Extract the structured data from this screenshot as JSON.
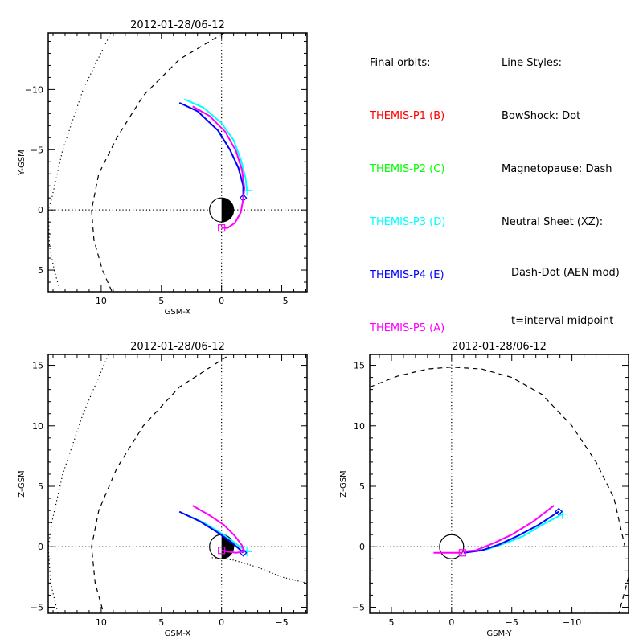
{
  "legend": {
    "orbits_title": "Final orbits:",
    "orbits": [
      {
        "label": "THEMIS-P1 (B)",
        "color": "#ff0000"
      },
      {
        "label": "THEMIS-P2 (C)",
        "color": "#00ff00"
      },
      {
        "label": "THEMIS-P3 (D)",
        "color": "#00ffff"
      },
      {
        "label": "THEMIS-P4 (E)",
        "color": "#0000ff"
      },
      {
        "label": "THEMIS-P5 (A)",
        "color": "#ff00ff"
      }
    ],
    "styles_title": "Line Styles:",
    "styles": [
      "BowShock: Dot",
      "Magnetopause: Dash",
      "Neutral Sheet (XZ):"
    ],
    "styles_indented": [
      "Dash-Dot (AEN mod)",
      "t=interval midpoint"
    ]
  },
  "chart_data": [
    {
      "type": "line",
      "title": "2012-01-28/06-12",
      "xlabel": "GSM-X",
      "ylabel": "Y-GSM",
      "xlim": [
        14.4,
        -7.1
      ],
      "ylim": [
        6.8,
        -14.7
      ],
      "xticks": [
        10,
        5,
        0,
        -5
      ],
      "yticks": [
        -10,
        -5,
        0,
        5
      ],
      "tick_labels_x": [
        "10",
        "5",
        "0",
        "-5"
      ],
      "tick_labels_y": [
        "-10",
        "-5",
        "0",
        "5"
      ],
      "earth": {
        "center": [
          0,
          0
        ],
        "radius": 1,
        "night_side": "negative-x"
      },
      "boundaries": [
        {
          "name": "bow-shock",
          "style": "dot",
          "points": [
            [
              9.2,
              -14.7
            ],
            [
              11.5,
              -10
            ],
            [
              13.2,
              -5
            ],
            [
              14.1,
              -1
            ],
            [
              14.4,
              0
            ],
            [
              14.3,
              3
            ],
            [
              13.9,
              5
            ],
            [
              13.4,
              6.8
            ]
          ]
        },
        {
          "name": "magnetopause",
          "style": "dash",
          "points": [
            [
              -0.2,
              -14.7
            ],
            [
              3.5,
              -12.5
            ],
            [
              6.5,
              -9.5
            ],
            [
              8.7,
              -6
            ],
            [
              10.2,
              -3
            ],
            [
              10.8,
              0
            ],
            [
              10.6,
              2.5
            ],
            [
              9.9,
              5
            ],
            [
              9.1,
              6.8
            ]
          ]
        }
      ],
      "series": [
        {
          "name": "THEMIS-P3 (D)",
          "color": "#00ffff",
          "points": [
            [
              3.1,
              -9.2
            ],
            [
              1.5,
              -8.5
            ],
            [
              0,
              -7.2
            ],
            [
              -1.0,
              -5.8
            ],
            [
              -1.6,
              -4.2
            ],
            [
              -2.0,
              -2.6
            ],
            [
              -2.1,
              -1.6
            ]
          ],
          "end_marker": "plus"
        },
        {
          "name": "THEMIS-P4 (E)",
          "color": "#0000ff",
          "points": [
            [
              3.5,
              -8.9
            ],
            [
              2.0,
              -8.2
            ],
            [
              0.3,
              -6.6
            ],
            [
              -0.7,
              -5.0
            ],
            [
              -1.4,
              -3.5
            ],
            [
              -1.8,
              -2.0
            ],
            [
              -1.8,
              -1.0
            ]
          ],
          "end_marker": "diamond"
        },
        {
          "name": "THEMIS-P5 (A)",
          "color": "#ff00ff",
          "points": [
            [
              2.4,
              -8.6
            ],
            [
              1.0,
              -7.8
            ],
            [
              -0.3,
              -6.5
            ],
            [
              -1.2,
              -4.9
            ],
            [
              -1.7,
              -3.3
            ],
            [
              -1.9,
              -1.8
            ],
            [
              -1.8,
              -0.9
            ],
            [
              -1.6,
              0.2
            ],
            [
              -1.1,
              1.1
            ],
            [
              -0.5,
              1.5
            ],
            [
              0,
              1.5
            ]
          ],
          "end_marker": "square"
        }
      ]
    },
    {
      "type": "line",
      "title": "2012-01-28/06-12",
      "xlabel": "GSM-X",
      "ylabel": "Z-GSM",
      "xlim": [
        14.4,
        -7.1
      ],
      "ylim": [
        -5.5,
        15.9
      ],
      "xticks": [
        10,
        5,
        0,
        -5
      ],
      "yticks": [
        -5,
        0,
        5,
        10,
        15
      ],
      "tick_labels_x": [
        "10",
        "5",
        "0",
        "-5"
      ],
      "tick_labels_y": [
        "-5",
        "0",
        "5",
        "10",
        "15"
      ],
      "earth": {
        "center": [
          0,
          0
        ],
        "radius": 1,
        "night_side": "negative-x"
      },
      "boundaries": [
        {
          "name": "bow-shock",
          "style": "dot",
          "points": [
            [
              9.4,
              15.9
            ],
            [
              11.5,
              11
            ],
            [
              13.2,
              6
            ],
            [
              14.1,
              2
            ],
            [
              14.4,
              0
            ],
            [
              14.2,
              -3
            ],
            [
              13.6,
              -5.5
            ]
          ]
        },
        {
          "name": "magnetopause",
          "style": "dash",
          "points": [
            [
              -0.4,
              15.7
            ],
            [
              3.5,
              13.2
            ],
            [
              6.5,
              10
            ],
            [
              8.7,
              6.5
            ],
            [
              10.2,
              3
            ],
            [
              10.8,
              0
            ],
            [
              10.5,
              -3
            ],
            [
              9.8,
              -5.5
            ]
          ]
        },
        {
          "name": "neutral-sheet",
          "style": "dash-dot",
          "points": [
            [
              0.8,
              -0.9
            ],
            [
              -1,
              -1.1
            ],
            [
              -3,
              -1.7
            ],
            [
              -5,
              -2.5
            ],
            [
              -7.1,
              -3
            ]
          ]
        }
      ],
      "series": [
        {
          "name": "THEMIS-P3 (D)",
          "color": "#00ffff",
          "points": [
            [
              3.1,
              2.7
            ],
            [
              1.5,
              2.0
            ],
            [
              0,
              1.1
            ],
            [
              -1.0,
              0.4
            ],
            [
              -1.8,
              -0.2
            ],
            [
              -2.1,
              -0.4
            ]
          ],
          "end_marker": "plus"
        },
        {
          "name": "THEMIS-P4 (E)",
          "color": "#0000ff",
          "points": [
            [
              3.5,
              2.9
            ],
            [
              1.8,
              2.1
            ],
            [
              0.2,
              1.1
            ],
            [
              -0.9,
              0.3
            ],
            [
              -1.6,
              -0.3
            ],
            [
              -1.8,
              -0.5
            ]
          ],
          "end_marker": "diamond"
        },
        {
          "name": "THEMIS-P5 (A)",
          "color": "#ff00ff",
          "points": [
            [
              2.4,
              3.4
            ],
            [
              1.0,
              2.6
            ],
            [
              -0.2,
              1.8
            ],
            [
              -1.1,
              0.9
            ],
            [
              -1.7,
              0.1
            ],
            [
              -1.9,
              -0.4
            ],
            [
              -1.2,
              -0.5
            ],
            [
              -0.5,
              -0.4
            ],
            [
              0,
              -0.3
            ]
          ],
          "end_marker": "square"
        }
      ]
    },
    {
      "type": "line",
      "title": "2012-01-28/06-12",
      "xlabel": "GSM-Y",
      "ylabel": "Z-GSM",
      "xlim": [
        6.8,
        -14.7
      ],
      "ylim": [
        -5.5,
        15.9
      ],
      "xticks": [
        5,
        0,
        -5,
        -10
      ],
      "yticks": [
        -5,
        0,
        5,
        10,
        15
      ],
      "tick_labels_x": [
        "5",
        "0",
        "-5",
        "-10"
      ],
      "tick_labels_y": [
        "-5",
        "0",
        "5",
        "10",
        "15"
      ],
      "earth": {
        "center": [
          0,
          0
        ],
        "radius": 1,
        "night_side": "none"
      },
      "boundaries": [
        {
          "name": "magnetopause",
          "style": "dash",
          "points": [
            [
              6.8,
              13.2
            ],
            [
              4.5,
              14.1
            ],
            [
              2,
              14.7
            ],
            [
              0,
              14.85
            ],
            [
              -2.5,
              14.7
            ],
            [
              -5,
              14
            ],
            [
              -7.5,
              12.6
            ],
            [
              -10,
              10
            ],
            [
              -12,
              7
            ],
            [
              -13.5,
              4
            ],
            [
              -14.4,
              0
            ]
          ]
        },
        {
          "name": "magnetopause-lower",
          "style": "dash",
          "points": [
            [
              -14.7,
              -2.5
            ],
            [
              -14.3,
              -4
            ],
            [
              -13.9,
              -5.5
            ]
          ]
        }
      ],
      "series": [
        {
          "name": "THEMIS-P3 (D)",
          "color": "#00ffff",
          "points": [
            [
              -1.5,
              -0.4
            ],
            [
              -3,
              -0.2
            ],
            [
              -4.5,
              0.3
            ],
            [
              -6,
              0.9
            ],
            [
              -7.5,
              1.8
            ],
            [
              -9.2,
              2.7
            ]
          ],
          "end_marker": "plus"
        },
        {
          "name": "THEMIS-P4 (E)",
          "color": "#0000ff",
          "points": [
            [
              -1.0,
              -0.5
            ],
            [
              -2.5,
              -0.3
            ],
            [
              -4,
              0.2
            ],
            [
              -5.5,
              0.9
            ],
            [
              -7.2,
              1.8
            ],
            [
              -8.9,
              2.9
            ]
          ],
          "end_marker": "diamond"
        },
        {
          "name": "THEMIS-P5 (A)",
          "color": "#ff00ff",
          "points": [
            [
              -0.9,
              -0.4
            ],
            [
              -2,
              -0.3
            ],
            [
              -3.5,
              0.3
            ],
            [
              -5,
              1.0
            ],
            [
              -6.8,
              2.1
            ],
            [
              -8.5,
              3.4
            ]
          ],
          "end_marker": "square-start"
        },
        {
          "name": "THEMIS-P5 (A) inbound",
          "color": "#ff00ff",
          "points": [
            [
              1.5,
              -0.5
            ],
            [
              0,
              -0.5
            ],
            [
              -0.9,
              -0.5
            ]
          ],
          "end_marker": "square"
        }
      ]
    }
  ]
}
